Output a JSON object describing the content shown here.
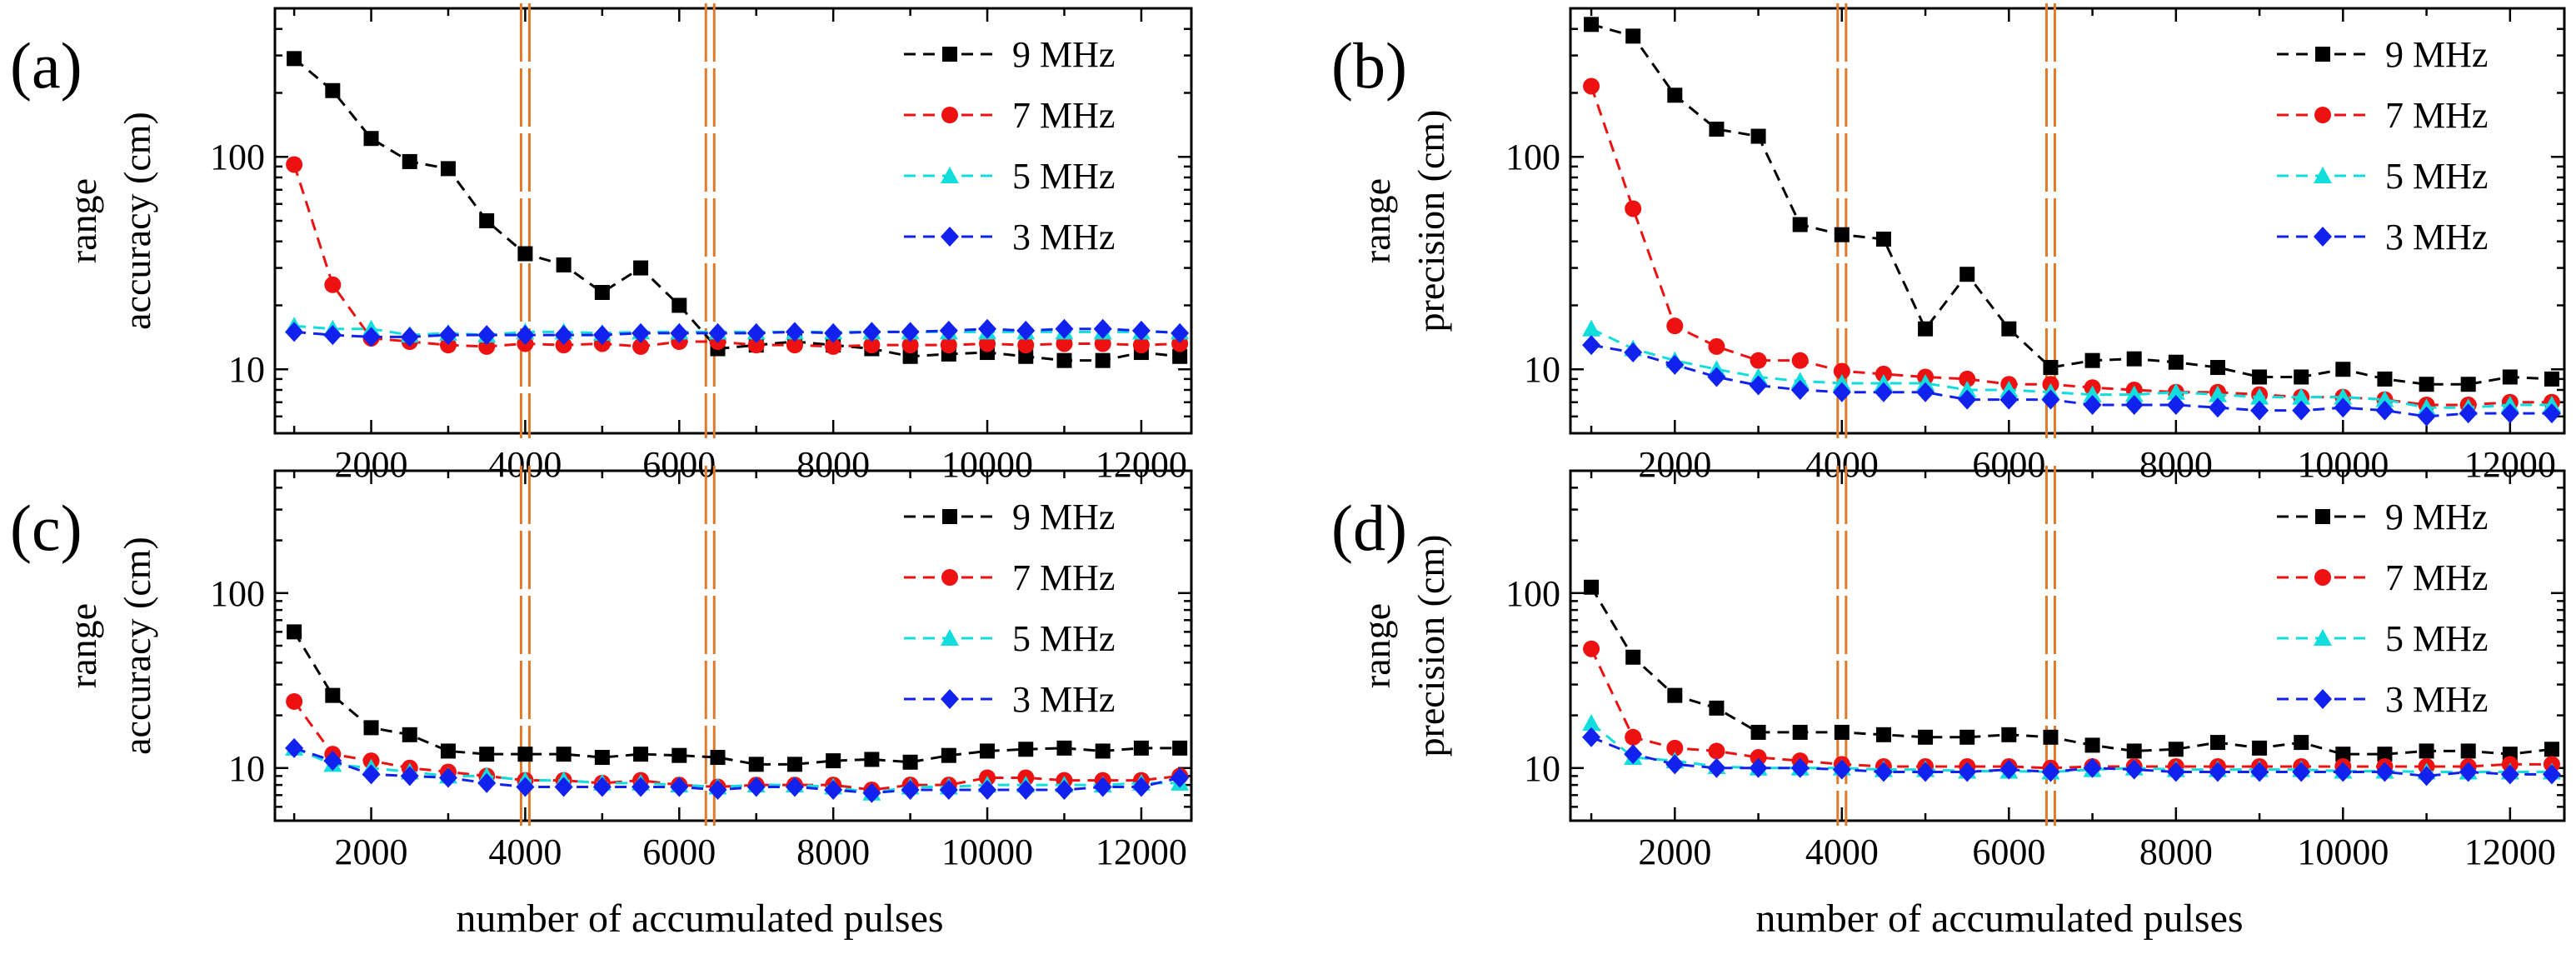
{
  "figure": {
    "xlabel": "number of accumulated pulses",
    "series_colors": {
      "9 MHz": "#000000",
      "7 MHz": "#ee1111",
      "5 MHz": "#11dddd",
      "3 MHz": "#1122ee"
    },
    "marker_kinds": {
      "9 MHz": "square",
      "7 MHz": "circle",
      "5 MHz": "triangle",
      "3 MHz": "diamond"
    },
    "vline_color": "#e07a2a"
  },
  "chart_data": [
    {
      "type": "line",
      "panel": "(a)",
      "ylabel_line1": "range",
      "ylabel_line2": "accuracy (cm)",
      "yscale": "log",
      "ylim": [
        5,
        500
      ],
      "xlim": [
        750,
        12650
      ],
      "yticks": [
        10,
        100
      ],
      "xticks": [
        2000,
        4000,
        6000,
        8000,
        10000,
        12000
      ],
      "vlines": [
        4000,
        6400
      ],
      "legend_position": "top-right",
      "x": [
        1000,
        1500,
        2000,
        2500,
        3000,
        3500,
        4000,
        4500,
        5000,
        5500,
        6000,
        6500,
        7000,
        7500,
        8000,
        8500,
        9000,
        9500,
        10000,
        10500,
        11000,
        11500,
        12000,
        12500
      ],
      "series": [
        {
          "name": "9 MHz",
          "values": [
            290,
            205,
            122,
            95,
            88,
            50,
            35,
            31,
            23,
            30,
            20,
            12.5,
            13,
            13.5,
            13,
            12.5,
            11.5,
            11.8,
            12,
            11.5,
            11,
            11,
            12,
            11.5
          ]
        },
        {
          "name": "7 MHz",
          "values": [
            92,
            25,
            14,
            13.5,
            13,
            12.8,
            13.2,
            13,
            13.2,
            12.8,
            13.5,
            13.5,
            13,
            13,
            12.8,
            13,
            13,
            13,
            13.2,
            13,
            13.2,
            13.2,
            13,
            13.2
          ]
        },
        {
          "name": "5 MHz",
          "values": [
            16,
            15.5,
            15.5,
            14.5,
            14.8,
            14.5,
            15,
            15,
            14.8,
            15,
            15,
            15,
            15,
            15,
            15,
            15,
            15,
            15,
            15,
            15,
            15,
            15,
            15,
            15
          ]
        },
        {
          "name": "3 MHz",
          "values": [
            15,
            14.5,
            14.2,
            14.2,
            14.5,
            14.5,
            14.5,
            14.5,
            14.5,
            14.8,
            14.8,
            14.8,
            14.8,
            15,
            14.8,
            15,
            15,
            15.2,
            15.5,
            15.2,
            15.5,
            15.5,
            15.2,
            14.8
          ]
        }
      ]
    },
    {
      "type": "line",
      "panel": "(b)",
      "ylabel_line1": "range",
      "ylabel_line2": "precision (cm)",
      "yscale": "log",
      "ylim": [
        5,
        500
      ],
      "xlim": [
        750,
        12650
      ],
      "yticks": [
        10,
        100
      ],
      "xticks": [
        2000,
        4000,
        6000,
        8000,
        10000,
        12000
      ],
      "vlines": [
        4000,
        6500
      ],
      "legend_position": "top-right",
      "x": [
        1000,
        1500,
        2000,
        2500,
        3000,
        3500,
        4000,
        4500,
        5000,
        5500,
        6000,
        6500,
        7000,
        7500,
        8000,
        8500,
        9000,
        9500,
        10000,
        10500,
        11000,
        11500,
        12000,
        12500
      ],
      "series": [
        {
          "name": "9 MHz",
          "values": [
            420,
            370,
            195,
            135,
            125,
            48,
            43,
            41,
            15.5,
            28,
            15.5,
            10.2,
            11,
            11.2,
            10.8,
            10.2,
            9.2,
            9.2,
            10,
            9,
            8.5,
            8.5,
            9.2,
            9
          ]
        },
        {
          "name": "7 MHz",
          "values": [
            215,
            57,
            16,
            12.8,
            11,
            11,
            9.8,
            9.5,
            9.2,
            9,
            8.5,
            8.5,
            8.2,
            8,
            7.8,
            7.8,
            7.6,
            7.4,
            7.4,
            7.2,
            6.8,
            6.8,
            7,
            7
          ]
        },
        {
          "name": "5 MHz",
          "values": [
            15.5,
            12.5,
            11,
            10,
            9.2,
            8.8,
            8.6,
            8.6,
            8.6,
            8,
            8,
            7.8,
            7.6,
            7.6,
            7.8,
            7.6,
            7.4,
            7.4,
            7.4,
            7.2,
            6.6,
            6.6,
            6.8,
            6.8
          ]
        },
        {
          "name": "3 MHz",
          "values": [
            13,
            12,
            10.5,
            9.2,
            8.4,
            8,
            7.8,
            7.8,
            7.8,
            7.2,
            7.2,
            7.2,
            6.8,
            6.8,
            6.8,
            6.6,
            6.4,
            6.4,
            6.6,
            6.4,
            6,
            6.2,
            6.2,
            6.2
          ]
        }
      ]
    },
    {
      "type": "line",
      "panel": "(c)",
      "ylabel_line1": "range",
      "ylabel_line2": "accuracy (cm)",
      "yscale": "log",
      "ylim": [
        5,
        500
      ],
      "xlim": [
        750,
        12650
      ],
      "yticks": [
        10,
        100
      ],
      "xticks": [
        2000,
        4000,
        6000,
        8000,
        10000,
        12000
      ],
      "vlines": [
        4000,
        6400
      ],
      "legend_position": "top-right",
      "x": [
        1000,
        1500,
        2000,
        2500,
        3000,
        3500,
        4000,
        4500,
        5000,
        5500,
        6000,
        6500,
        7000,
        7500,
        8000,
        8500,
        9000,
        9500,
        10000,
        10500,
        11000,
        11500,
        12000,
        12500
      ],
      "series": [
        {
          "name": "9 MHz",
          "values": [
            60,
            26,
            17,
            15.5,
            12.5,
            12,
            12,
            12,
            11.5,
            12,
            11.8,
            11.5,
            10.5,
            10.5,
            11,
            11.2,
            10.8,
            11.8,
            12.5,
            12.8,
            13,
            12.5,
            13,
            13
          ]
        },
        {
          "name": "7 MHz",
          "values": [
            24,
            12,
            11,
            10,
            9.5,
            9,
            8.5,
            8.5,
            8.2,
            8.5,
            8,
            7.8,
            8,
            8,
            8,
            7.5,
            8,
            8,
            8.8,
            8.8,
            8.5,
            8.5,
            8.5,
            9
          ]
        },
        {
          "name": "5 MHz",
          "values": [
            13,
            10.5,
            10,
            9.5,
            9,
            9,
            8.5,
            8.5,
            8.2,
            8.2,
            8,
            7.8,
            8,
            8,
            7.8,
            7.2,
            7.8,
            7.8,
            8,
            8,
            8,
            8,
            8.2,
            8.2
          ]
        },
        {
          "name": "3 MHz",
          "values": [
            13,
            11,
            9.2,
            9,
            8.8,
            8.2,
            7.8,
            7.8,
            7.8,
            7.8,
            7.8,
            7.5,
            7.8,
            7.8,
            7.5,
            7.2,
            7.5,
            7.5,
            7.5,
            7.5,
            7.5,
            7.8,
            7.8,
            8.8
          ]
        }
      ]
    },
    {
      "type": "line",
      "panel": "(d)",
      "ylabel_line1": "range",
      "ylabel_line2": "precision (cm)",
      "yscale": "log",
      "ylim": [
        5,
        500
      ],
      "xlim": [
        750,
        12650
      ],
      "yticks": [
        10,
        100
      ],
      "xticks": [
        2000,
        4000,
        6000,
        8000,
        10000,
        12000
      ],
      "vlines": [
        4000,
        6500
      ],
      "legend_position": "top-right",
      "x": [
        1000,
        1500,
        2000,
        2500,
        3000,
        3500,
        4000,
        4500,
        5000,
        5500,
        6000,
        6500,
        7000,
        7500,
        8000,
        8500,
        9000,
        9500,
        10000,
        10500,
        11000,
        11500,
        12000,
        12500
      ],
      "series": [
        {
          "name": "9 MHz",
          "values": [
            108,
            43,
            26,
            22,
            16,
            16,
            16,
            15.5,
            15,
            15,
            15.5,
            15,
            13.5,
            12.5,
            12.8,
            14,
            13,
            14,
            12,
            12,
            12.5,
            12.5,
            12,
            12.8
          ]
        },
        {
          "name": "7 MHz",
          "values": [
            48,
            15,
            13,
            12.5,
            11.5,
            11,
            10.5,
            10.2,
            10.2,
            10.2,
            10.2,
            10,
            10.2,
            10.2,
            10.2,
            10.2,
            10.2,
            10.2,
            10.2,
            10.2,
            10.2,
            10.2,
            10.5,
            10.5
          ]
        },
        {
          "name": "5 MHz",
          "values": [
            18,
            11.5,
            11,
            10.2,
            10,
            10,
            10,
            9.8,
            9.8,
            9.6,
            9.6,
            9.5,
            9.8,
            10,
            9.8,
            9.8,
            9.8,
            9.8,
            9.6,
            9.6,
            9.5,
            9.5,
            9.5,
            9.5
          ]
        },
        {
          "name": "3 MHz",
          "values": [
            15,
            12,
            10.5,
            10,
            10,
            10,
            9.8,
            9.5,
            9.5,
            9.5,
            9.8,
            9.5,
            10,
            9.8,
            9.5,
            9.5,
            9.5,
            9.5,
            9.5,
            9.5,
            9,
            9.5,
            9.2,
            9.2
          ]
        }
      ]
    }
  ]
}
